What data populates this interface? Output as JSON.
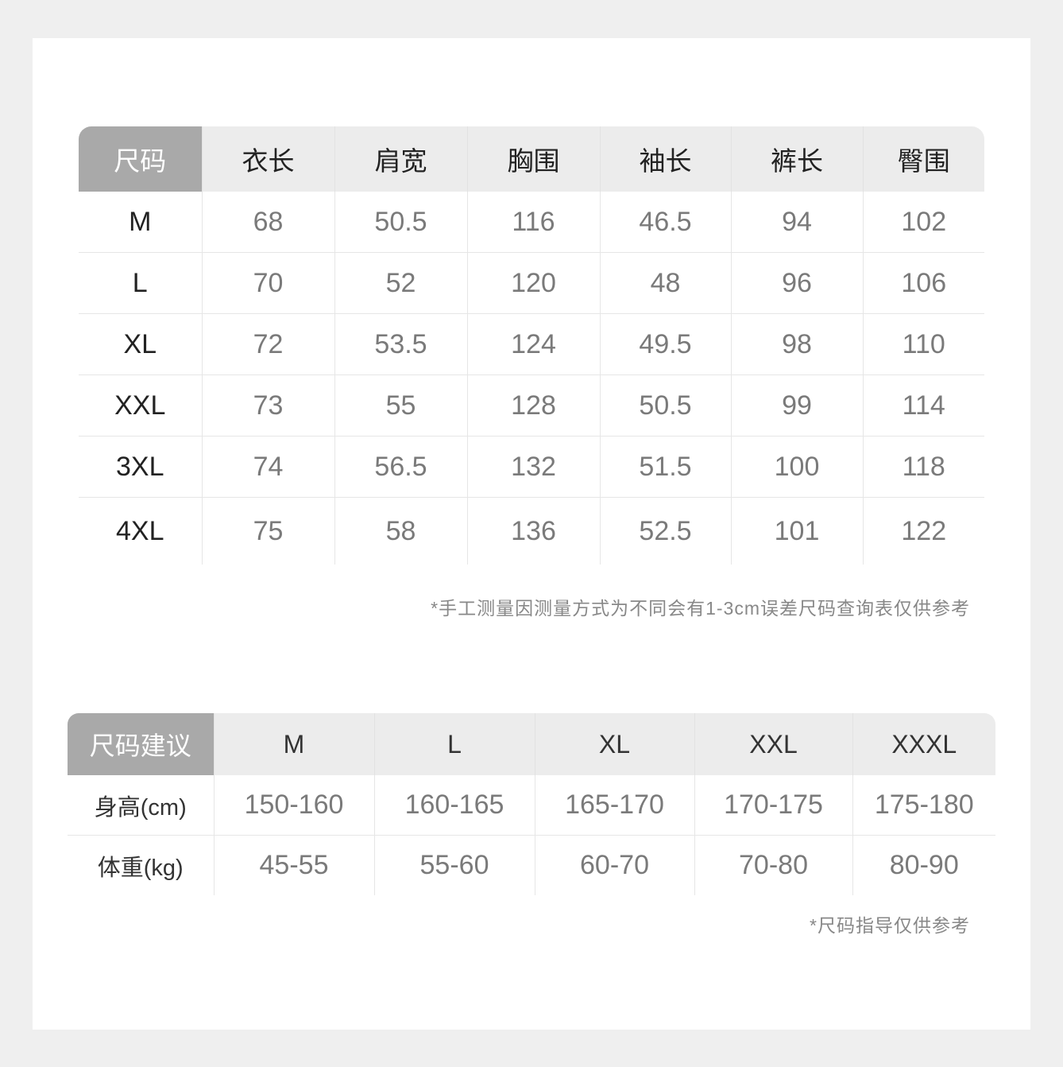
{
  "measurements": {
    "headers": [
      "尺码",
      "衣长",
      "肩宽",
      "胸围",
      "袖长",
      "裤长",
      "臀围"
    ],
    "rows": [
      [
        "M",
        "68",
        "50.5",
        "116",
        "46.5",
        "94",
        "102"
      ],
      [
        "L",
        "70",
        "52",
        "120",
        "48",
        "96",
        "106"
      ],
      [
        "XL",
        "72",
        "53.5",
        "124",
        "49.5",
        "98",
        "110"
      ],
      [
        "XXL",
        "73",
        "55",
        "128",
        "50.5",
        "99",
        "114"
      ],
      [
        "3XL",
        "74",
        "56.5",
        "132",
        "51.5",
        "100",
        "118"
      ],
      [
        "4XL",
        "75",
        "58",
        "136",
        "52.5",
        "101",
        "122"
      ]
    ],
    "note": "*手工测量因测量方式为不同会有1-3cm误差尺码查询表仅供参考"
  },
  "recommendation": {
    "headers": [
      "尺码建议",
      "M",
      "L",
      "XL",
      "XXL",
      "XXXL"
    ],
    "rows": [
      [
        "身高(cm)",
        "150-160",
        "160-165",
        "165-170",
        "170-175",
        "175-180"
      ],
      [
        "体重(kg)",
        "45-55",
        "55-60",
        "60-70",
        "70-80",
        "80-90"
      ]
    ],
    "note": "*尺码指导仅供参考"
  },
  "colors": {
    "header_label_bg": "#a9a9a9",
    "header_bg": "#ececec",
    "value_text": "#7a7a7a"
  }
}
